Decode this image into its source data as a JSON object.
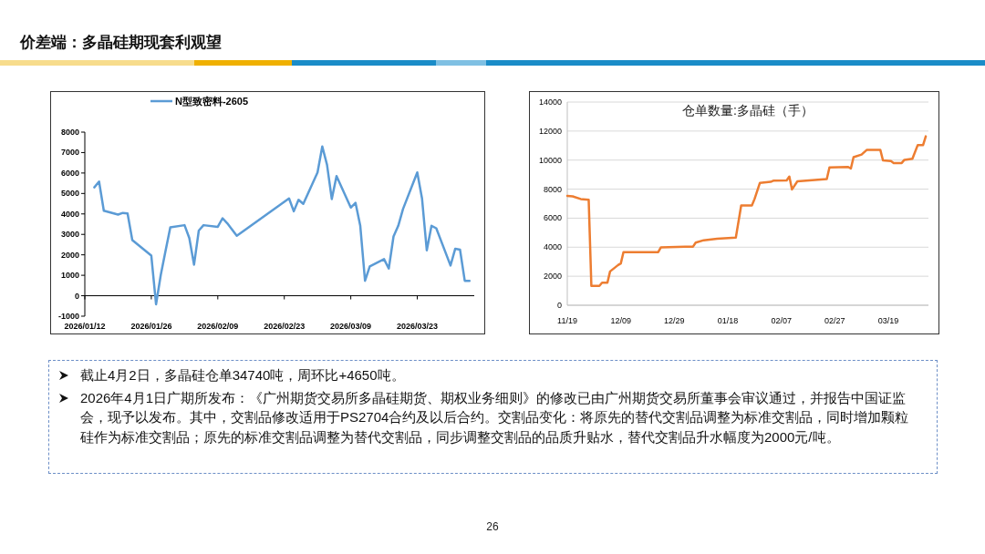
{
  "chart_data": [
    {
      "type": "line",
      "x": [
        "2026-01-14",
        "2026-01-15",
        "2026-01-16",
        "2026-01-19",
        "2026-01-20",
        "2026-01-21",
        "2026-01-22",
        "2026-01-26",
        "2026-01-27",
        "2026-01-28",
        "2026-01-29",
        "2026-01-30",
        "2026-02-02",
        "2026-02-03",
        "2026-02-04",
        "2026-02-05",
        "2026-02-06",
        "2026-02-09",
        "2026-02-10",
        "2026-02-11",
        "2026-02-13",
        "2026-02-24",
        "2026-02-25",
        "2026-02-26",
        "2026-02-27",
        "2026-03-02",
        "2026-03-03",
        "2026-03-04",
        "2026-03-05",
        "2026-03-06",
        "2026-03-09",
        "2026-03-10",
        "2026-03-11",
        "2026-03-12",
        "2026-03-13",
        "2026-03-16",
        "2026-03-17",
        "2026-03-18",
        "2026-03-19",
        "2026-03-20",
        "2026-03-23",
        "2026-03-24",
        "2026-03-25",
        "2026-03-26",
        "2026-03-27",
        "2026-03-30",
        "2026-03-31",
        "2026-04-01",
        "2026-04-02",
        "2026-04-03"
      ],
      "series": [
        {
          "name": "N型致密料-2605",
          "color": "#5b9bd5",
          "values": [
            5300,
            5580,
            4160,
            3970,
            4050,
            4020,
            2720,
            1960,
            -420,
            1030,
            2200,
            3340,
            3450,
            2820,
            1520,
            3190,
            3450,
            3370,
            3790,
            3540,
            2930,
            4760,
            4130,
            4690,
            4490,
            6030,
            7300,
            6400,
            4730,
            5850,
            4310,
            4540,
            3420,
            730,
            1430,
            1790,
            1330,
            2900,
            3420,
            4240,
            6030,
            4760,
            2220,
            3420,
            3300,
            1480,
            2300,
            2250,
            730,
            730
          ]
        }
      ],
      "xlim": [
        "2026-01-12",
        "2026-04-04"
      ],
      "xticks": [
        {
          "value": "2026-01-12",
          "label": "2026/01/12"
        },
        {
          "value": "2026-01-26",
          "label": "2026/01/26"
        },
        {
          "value": "2026-02-09",
          "label": "2026/02/09"
        },
        {
          "value": "2026-02-23",
          "label": "2026/02/23"
        },
        {
          "value": "2026-03-09",
          "label": "2026/03/09"
        },
        {
          "value": "2026-03-23",
          "label": "2026/03/23"
        }
      ],
      "ylim": [
        -1000,
        8000
      ],
      "yticks": [
        -1000,
        0,
        1000,
        2000,
        3000,
        4000,
        5000,
        6000,
        7000,
        8000
      ],
      "legend": "top",
      "marker": "none",
      "line_style": "solid"
    },
    {
      "type": "line",
      "title": "仓单数量:多晶硅（手）",
      "x": [
        "2025-11-19",
        "2025-11-21",
        "2025-11-24",
        "2025-11-27",
        "2025-11-28",
        "2025-12-01",
        "2025-12-02",
        "2025-12-04",
        "2025-12-05",
        "2025-12-08",
        "2025-12-09",
        "2025-12-10",
        "2025-12-23",
        "2025-12-24",
        "2026-01-02",
        "2026-01-05",
        "2026-01-06",
        "2026-01-09",
        "2026-01-14",
        "2026-01-21",
        "2026-01-23",
        "2026-01-27",
        "2026-01-28",
        "2026-01-30",
        "2026-02-03",
        "2026-02-04",
        "2026-02-09",
        "2026-02-10",
        "2026-02-11",
        "2026-02-13",
        "2026-02-24",
        "2026-02-25",
        "2026-03-04",
        "2026-03-05",
        "2026-03-06",
        "2026-03-09",
        "2026-03-11",
        "2026-03-16",
        "2026-03-17",
        "2026-03-20",
        "2026-03-21",
        "2026-03-24",
        "2026-03-25",
        "2026-03-28",
        "2026-03-30",
        "2026-04-01",
        "2026-04-02"
      ],
      "series": [
        {
          "color": "#ed7d31",
          "values": [
            7540,
            7500,
            7320,
            7270,
            1330,
            1330,
            1550,
            1550,
            2330,
            2770,
            2880,
            3660,
            3660,
            3990,
            4040,
            4040,
            4320,
            4480,
            4590,
            4660,
            6870,
            6870,
            7320,
            8430,
            8500,
            8580,
            8600,
            8870,
            7980,
            8540,
            8690,
            9490,
            9530,
            9420,
            10200,
            10380,
            10710,
            10710,
            9980,
            9930,
            9800,
            9800,
            10020,
            10090,
            11040,
            11040,
            11640
          ]
        }
      ],
      "xlim": [
        "2025-11-19",
        "2026-04-03"
      ],
      "xticks": [
        {
          "value": "2025-11-19",
          "label": "11/19"
        },
        {
          "value": "2025-12-09",
          "label": "12/09"
        },
        {
          "value": "2025-12-29",
          "label": "12/29"
        },
        {
          "value": "2026-01-18",
          "label": "01/18"
        },
        {
          "value": "2026-02-07",
          "label": "02/07"
        },
        {
          "value": "2026-02-27",
          "label": "02/27"
        },
        {
          "value": "2026-03-19",
          "label": "03/19"
        }
      ],
      "ylim": [
        0,
        14000
      ],
      "yticks": [
        0,
        2000,
        4000,
        6000,
        8000,
        10000,
        12000,
        14000
      ],
      "grid": "y",
      "legend": false,
      "marker": "none",
      "line_style": "solid"
    },
    {
      "type": "other",
      "title": "价差端：多晶硅期现套利观望",
      "annotations": [
        "截止4月2日，多晶硅仓单34740吨，周环比+4650吨。",
        "2026年4月1日广期所发布：《广州期货交易所多晶硅期货、期权业务细则》的修改已由广州期货交易所董事会审议通过，并报告中国证监会，现予以发布。其中，交割品修改适用于PS2704合约及以后合约。交割品变化：将原先的替代交割品调整为标准交割品，同时增加颗粒硅作为标准交割品；原先的标准交割品调整为替代交割品，同步调整交割品的品质升贴水，替代交割品升水幅度为2000元/吨。",
        "26"
      ]
    }
  ]
}
